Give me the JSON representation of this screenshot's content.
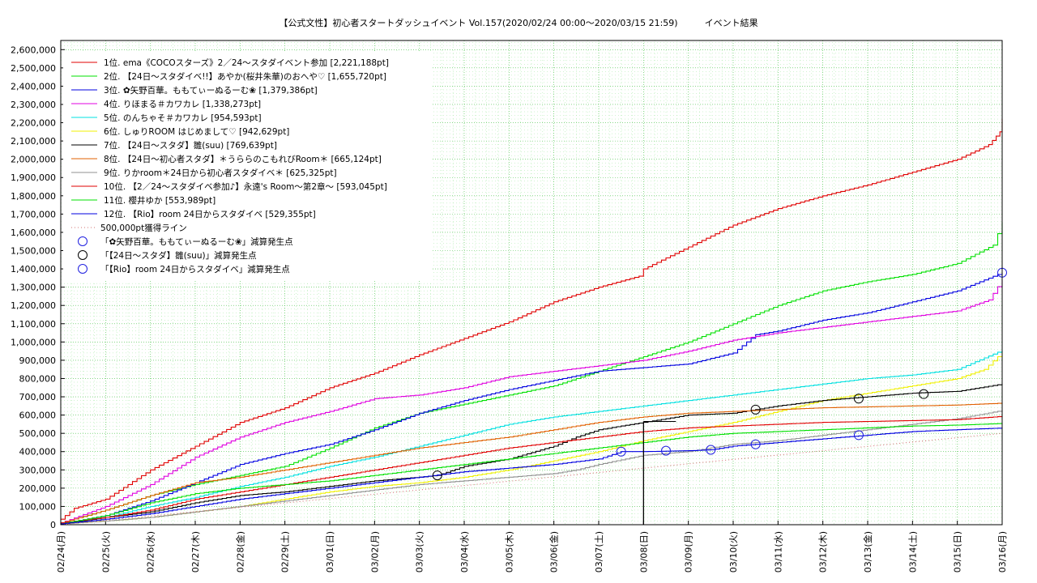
{
  "chart_data": {
    "type": "line",
    "title": "【公式文性】初心者スタートダッシュイベント Vol.157(2020/02/24 00:00〜2020/03/15 21:59)　　　イベント結果",
    "xlabel": "",
    "ylabel": "",
    "ylim": [
      0,
      2650000
    ],
    "yticks": [
      0,
      100000,
      200000,
      300000,
      400000,
      500000,
      600000,
      700000,
      800000,
      900000,
      1000000,
      1100000,
      1200000,
      1300000,
      1400000,
      1500000,
      1600000,
      1700000,
      1800000,
      1900000,
      2000000,
      2100000,
      2200000,
      2300000,
      2400000,
      2500000,
      2600000
    ],
    "ytick_labels": [
      "0",
      "100,000",
      "200,000",
      "300,000",
      "400,000",
      "500,000",
      "600,000",
      "700,000",
      "800,000",
      "900,000",
      "1,000,000",
      "1,100,000",
      "1,200,000",
      "1,300,000",
      "1,400,000",
      "1,500,000",
      "1,600,000",
      "1,700,000",
      "1,800,000",
      "1,900,000",
      "2,000,000",
      "2,100,000",
      "2,200,000",
      "2,300,000",
      "2,400,000",
      "2,500,000",
      "2,600,000"
    ],
    "xlim": [
      0,
      21
    ],
    "xtick_labels": [
      "02/24(月)",
      "02/25(火)",
      "02/26(水)",
      "02/27(木)",
      "02/28(金)",
      "02/29(土)",
      "03/01(日)",
      "03/02(月)",
      "03/03(火)",
      "03/04(水)",
      "03/05(木)",
      "03/06(金)",
      "03/07(土)",
      "03/08(日)",
      "03/09(月)",
      "03/10(火)",
      "03/11(水)",
      "03/12(木)",
      "03/13(金)",
      "03/14(土)",
      "03/15(日)",
      "03/16(月)"
    ],
    "grid": true,
    "legend": "top-left",
    "series": [
      {
        "name": "1位. ema《COCOスターズ》2／24〜スタダイベント参加 [2,221,188pt]",
        "color": "#e00000",
        "x": [
          0,
          0.3,
          1,
          2,
          3,
          4,
          5,
          6,
          7,
          8,
          9,
          10,
          11,
          12,
          12.9,
          13,
          14,
          15,
          16,
          17,
          18,
          19,
          20,
          20.7,
          20.95,
          21
        ],
        "y": [
          30000,
          90000,
          140000,
          300000,
          430000,
          560000,
          640000,
          750000,
          830000,
          930000,
          1020000,
          1110000,
          1220000,
          1300000,
          1360000,
          1400000,
          1520000,
          1640000,
          1730000,
          1800000,
          1860000,
          1930000,
          2000000,
          2080000,
          2150000,
          2221188
        ]
      },
      {
        "name": "2位. 【24日〜スタダイベ!!】あやか(桜井朱華)のおへや♡ [1,655,720pt]",
        "color": "#00e000",
        "x": [
          0,
          1,
          2,
          3,
          4,
          5,
          6,
          7,
          8,
          9,
          10,
          11,
          12,
          13,
          14,
          15,
          16,
          17,
          18,
          19,
          20,
          20.8,
          21
        ],
        "y": [
          10000,
          80000,
          160000,
          220000,
          270000,
          320000,
          420000,
          530000,
          610000,
          660000,
          710000,
          760000,
          840000,
          920000,
          1000000,
          1100000,
          1200000,
          1280000,
          1330000,
          1370000,
          1430000,
          1530000,
          1655720
        ]
      },
      {
        "name": "3位. ✿矢野百華。ももてぃーぬるーむ❀ [1,379,386pt]",
        "color": "#0000e0",
        "x": [
          0,
          1,
          2,
          3,
          4,
          5,
          6,
          7,
          8,
          9,
          10,
          11,
          12,
          13,
          14,
          15,
          15.5,
          16,
          17,
          18,
          19,
          20,
          21
        ],
        "y": [
          5000,
          50000,
          130000,
          230000,
          330000,
          390000,
          440000,
          520000,
          610000,
          680000,
          740000,
          790000,
          840000,
          860000,
          880000,
          940000,
          1040000,
          1060000,
          1120000,
          1160000,
          1220000,
          1280000,
          1379386
        ]
      },
      {
        "name": "4位. りほまる＃カワカレ [1,338,273pt]",
        "color": "#e000e0",
        "x": [
          0,
          1,
          2,
          3,
          4,
          5,
          6,
          7,
          8,
          9,
          10,
          11,
          12,
          13,
          14,
          15,
          16,
          17,
          18,
          19,
          20,
          20.7,
          21
        ],
        "y": [
          10000,
          100000,
          220000,
          370000,
          480000,
          560000,
          620000,
          690000,
          710000,
          750000,
          810000,
          840000,
          870000,
          900000,
          950000,
          1010000,
          1050000,
          1080000,
          1110000,
          1140000,
          1170000,
          1230000,
          1338273
        ]
      },
      {
        "name": "5位. のんちゃそ＃カワカレ [954,593pt]",
        "color": "#00e0e0",
        "x": [
          0,
          1,
          2,
          3,
          4,
          5,
          6,
          7,
          8,
          9,
          10,
          11,
          12,
          13,
          14,
          15,
          16,
          17,
          18,
          19,
          20,
          21
        ],
        "y": [
          5000,
          40000,
          100000,
          150000,
          210000,
          260000,
          320000,
          370000,
          430000,
          490000,
          550000,
          590000,
          620000,
          650000,
          680000,
          710000,
          740000,
          770000,
          800000,
          820000,
          850000,
          954593
        ]
      },
      {
        "name": "6位. しゅりROOM はじめまして♡ [942,629pt]",
        "color": "#f0f000",
        "x": [
          0,
          1,
          2,
          3,
          4,
          5,
          6,
          7,
          8,
          9,
          10,
          11,
          12,
          13,
          14,
          15,
          16,
          17,
          18,
          19,
          20,
          20.6,
          21
        ],
        "y": [
          5000,
          20000,
          40000,
          70000,
          100000,
          140000,
          180000,
          210000,
          230000,
          260000,
          300000,
          350000,
          400000,
          460000,
          510000,
          560000,
          620000,
          680000,
          720000,
          760000,
          800000,
          850000,
          942629
        ]
      },
      {
        "name": "7位. 【24日〜スタダ】雛(suu) [769,639pt]",
        "color": "#000000",
        "x": [
          0,
          1,
          2,
          3,
          4,
          5,
          6,
          7,
          8,
          8.4,
          9,
          10,
          11,
          11.5,
          12,
          13,
          14,
          15,
          15.5,
          16,
          17,
          18,
          18.5,
          19,
          20,
          21
        ],
        "y": [
          5000,
          40000,
          70000,
          120000,
          160000,
          180000,
          210000,
          240000,
          260000,
          270000,
          320000,
          360000,
          430000,
          480000,
          520000,
          560000,
          600000,
          610000,
          630000,
          650000,
          680000,
          700000,
          710000,
          720000,
          730000,
          769639
        ]
      },
      {
        "name": "8位. 【24日〜初心者スタダ】＊うららのこもれびRoom＊ [665,124pt]",
        "color": "#e06000",
        "x": [
          0,
          1,
          2,
          3,
          4,
          5,
          6,
          7,
          8,
          9,
          10,
          11,
          12,
          13,
          14,
          15,
          16,
          17,
          18,
          19,
          20,
          21
        ],
        "y": [
          10000,
          80000,
          160000,
          230000,
          260000,
          300000,
          340000,
          380000,
          420000,
          450000,
          480000,
          520000,
          560000,
          590000,
          610000,
          620000,
          630000,
          640000,
          645000,
          650000,
          655000,
          665124
        ]
      },
      {
        "name": "9位. りかroom＊24日から初心者スタダイベ＊ [625,325pt]",
        "color": "#909090",
        "x": [
          0,
          1,
          2,
          3,
          4,
          5,
          6,
          7,
          8,
          9,
          10,
          11,
          11.5,
          12,
          13,
          14,
          15,
          16,
          17,
          18,
          19,
          20,
          21
        ],
        "y": [
          5000,
          20000,
          40000,
          70000,
          100000,
          130000,
          160000,
          190000,
          220000,
          240000,
          260000,
          280000,
          300000,
          330000,
          380000,
          400000,
          440000,
          460000,
          490000,
          520000,
          550000,
          580000,
          625325
        ]
      },
      {
        "name": "10位. 【2／24〜スタダイベ参加♪】永遠's Room〜第2章〜 [593,045pt]",
        "color": "#e00000",
        "x": [
          0,
          1,
          2,
          3,
          4,
          5,
          6,
          7,
          8,
          9,
          10,
          11,
          12,
          13,
          14,
          15,
          16,
          17,
          18,
          19,
          20,
          21
        ],
        "y": [
          10000,
          40000,
          80000,
          140000,
          180000,
          220000,
          260000,
          300000,
          340000,
          380000,
          420000,
          450000,
          480000,
          510000,
          530000,
          540000,
          550000,
          560000,
          565000,
          570000,
          575000,
          593045
        ]
      },
      {
        "name": "11位. 櫻井ゆか [553,989pt]",
        "color": "#00e000",
        "x": [
          0,
          1,
          2,
          3,
          4,
          5,
          6,
          7,
          8,
          9,
          10,
          11,
          12,
          13,
          14,
          15,
          16,
          17,
          18,
          19,
          20,
          21
        ],
        "y": [
          5000,
          50000,
          120000,
          170000,
          200000,
          220000,
          240000,
          270000,
          300000,
          330000,
          360000,
          390000,
          420000,
          450000,
          480000,
          500000,
          510000,
          520000,
          530000,
          540000,
          545000,
          553989
        ]
      },
      {
        "name": "12位. 【Rio】room 24日からスタダイベ [529,355pt]",
        "color": "#0000e0",
        "x": [
          0,
          1,
          2,
          3,
          4,
          5,
          6,
          7,
          8,
          9,
          10,
          11,
          12,
          12.5,
          13,
          14,
          14.5,
          15,
          15.5,
          16,
          17,
          18,
          19,
          20,
          21
        ],
        "y": [
          5000,
          30000,
          60000,
          100000,
          140000,
          170000,
          200000,
          230000,
          260000,
          290000,
          310000,
          330000,
          360000,
          400000,
          400000,
          405000,
          410000,
          430000,
          440000,
          450000,
          470000,
          490000,
          510000,
          520000,
          529355
        ]
      },
      {
        "name": "500,000pt獲得ライン",
        "color": "#d07070",
        "dotted": true,
        "x": [
          0,
          21
        ],
        "y": [
          0,
          500000
        ]
      }
    ],
    "annotations": [
      {
        "label": "「✿矢野百華。ももてぃーぬるーむ❀」減算発生点",
        "color": "#2020e0",
        "x": [
          21
        ],
        "y": [
          1379386
        ]
      },
      {
        "label": "「【24日〜スタダ】雛(suu)」減算発生点",
        "color": "#000000",
        "x": [
          8.4,
          15.5,
          17.8,
          19.25
        ],
        "y": [
          270000,
          630000,
          690000,
          715000
        ]
      },
      {
        "label": "「【Rio】room 24日からスタダイベ」減算発生点",
        "color": "#2020e0",
        "x": [
          12.5,
          13.5,
          14.5,
          15.5,
          17.8
        ],
        "y": [
          400000,
          405000,
          410000,
          440000,
          490000
        ]
      }
    ],
    "reference_lines": [
      {
        "axis": "x",
        "value": 13,
        "color": "#000000",
        "from": 0,
        "to": 565000
      }
    ]
  }
}
